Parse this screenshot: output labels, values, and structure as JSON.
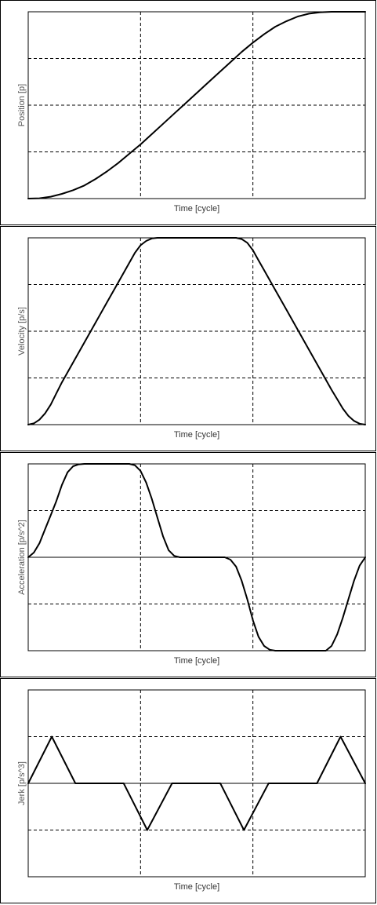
{
  "chart_data": [
    {
      "type": "line",
      "xlabel": "Time [cycle]",
      "ylabel": "Position [p]",
      "xlim": [
        0,
        3
      ],
      "ylim": [
        0,
        2
      ],
      "grid": true,
      "zero_line": false,
      "series": [
        {
          "x": [
            0,
            0.1,
            0.2,
            0.3,
            0.4,
            0.5,
            0.6,
            0.7,
            0.8,
            0.9,
            1.0,
            1.1,
            1.2,
            1.3,
            1.4,
            1.5,
            1.6,
            1.7,
            1.8,
            1.9,
            2.0,
            2.1,
            2.2,
            2.3,
            2.4,
            2.5,
            2.6,
            2.7,
            2.8,
            2.9,
            3.0
          ],
          "y": [
            0,
            0.003,
            0.02,
            0.05,
            0.09,
            0.14,
            0.21,
            0.29,
            0.38,
            0.48,
            0.58,
            0.69,
            0.8,
            0.91,
            1.02,
            1.13,
            1.24,
            1.35,
            1.46,
            1.57,
            1.67,
            1.76,
            1.84,
            1.9,
            1.95,
            1.98,
            1.995,
            2.0,
            2.0,
            2.0,
            2.0
          ]
        }
      ]
    },
    {
      "type": "line",
      "xlabel": "Time [cycle]",
      "ylabel": "Velocity [p/s]",
      "xlim": [
        0,
        3
      ],
      "ylim": [
        0,
        3
      ],
      "grid": true,
      "zero_line": false,
      "series": [
        {
          "x": [
            0,
            0.05,
            0.1,
            0.15,
            0.2,
            0.25,
            0.3,
            0.4,
            0.5,
            0.6,
            0.7,
            0.8,
            0.9,
            0.95,
            1.0,
            1.05,
            1.1,
            1.15,
            1.2,
            1.8,
            1.85,
            1.9,
            1.95,
            2.0,
            2.05,
            2.1,
            2.2,
            2.3,
            2.4,
            2.5,
            2.6,
            2.7,
            2.75,
            2.8,
            2.85,
            2.9,
            2.95,
            3.0
          ],
          "y": [
            0,
            0.02,
            0.08,
            0.18,
            0.32,
            0.5,
            0.68,
            1.0,
            1.32,
            1.64,
            1.96,
            2.28,
            2.6,
            2.76,
            2.88,
            2.95,
            2.99,
            3.0,
            3.0,
            3.0,
            3.0,
            2.98,
            2.92,
            2.8,
            2.64,
            2.48,
            2.16,
            1.84,
            1.52,
            1.2,
            0.88,
            0.56,
            0.41,
            0.26,
            0.14,
            0.06,
            0.015,
            0
          ]
        }
      ]
    },
    {
      "type": "line",
      "xlabel": "Time [cycle]",
      "ylabel": "Acceleration [p/s^2]",
      "xlim": [
        0,
        3
      ],
      "ylim": [
        -2,
        2
      ],
      "grid": true,
      "zero_line": true,
      "series": [
        {
          "x": [
            0,
            0.05,
            0.1,
            0.15,
            0.2,
            0.25,
            0.3,
            0.35,
            0.4,
            0.45,
            0.5,
            0.9,
            0.95,
            1.0,
            1.05,
            1.1,
            1.15,
            1.2,
            1.25,
            1.3,
            1.35,
            1.4,
            1.75,
            1.8,
            1.85,
            1.9,
            1.95,
            2.0,
            2.05,
            2.1,
            2.15,
            2.2,
            2.65,
            2.7,
            2.75,
            2.8,
            2.85,
            2.9,
            2.95,
            3.0
          ],
          "y": [
            0,
            0.1,
            0.3,
            0.6,
            0.9,
            1.2,
            1.55,
            1.82,
            1.95,
            1.99,
            2.0,
            2.0,
            1.97,
            1.85,
            1.6,
            1.25,
            0.85,
            0.45,
            0.15,
            0.03,
            0.0,
            0.0,
            0.0,
            -0.05,
            -0.2,
            -0.5,
            -0.9,
            -1.35,
            -1.7,
            -1.9,
            -1.98,
            -2.0,
            -2.0,
            -1.9,
            -1.65,
            -1.3,
            -0.9,
            -0.5,
            -0.18,
            0
          ]
        }
      ]
    },
    {
      "type": "line",
      "xlabel": "Time [cycle]",
      "ylabel": "Jerk [p/s^3]",
      "xlim": [
        0,
        3
      ],
      "ylim": [
        -2,
        2
      ],
      "grid": true,
      "zero_line": true,
      "series": [
        {
          "x": [
            0,
            0.21,
            0.42,
            0.85,
            1.06,
            1.28,
            1.71,
            1.92,
            2.14,
            2.57,
            2.78,
            3.0
          ],
          "y": [
            0,
            1,
            0,
            0,
            -1,
            0,
            0,
            -1,
            0,
            0,
            1,
            0
          ]
        }
      ]
    }
  ]
}
